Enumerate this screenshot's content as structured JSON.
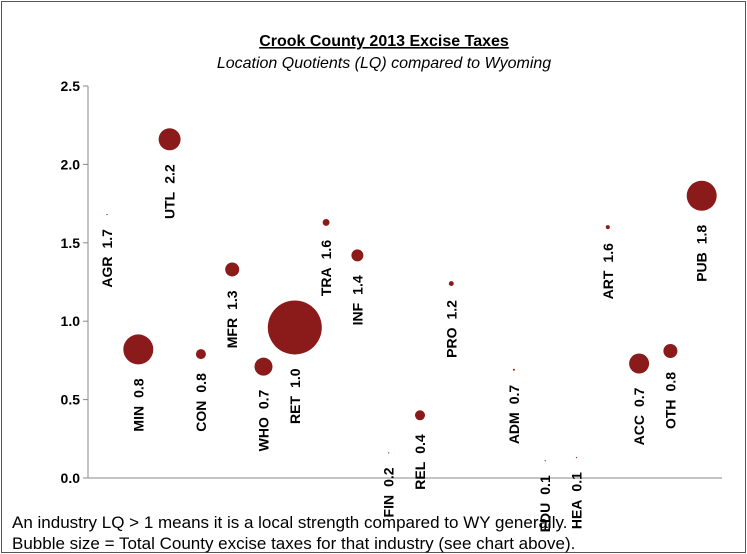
{
  "chart_data": {
    "type": "bubble",
    "title": "Crook County 2013 Excise Taxes",
    "subtitle": "Location Quotients (LQ) compared to Wyoming",
    "annotations": [
      "An industry LQ > 1 means it is a local strength compared to WY generally.",
      "Bubble size = Total County excise taxes for that industry (see chart above)."
    ],
    "categories": [
      "AGR",
      "MIN",
      "UTL",
      "CON",
      "MFR",
      "WHO",
      "RET",
      "TRA",
      "INF",
      "FIN",
      "REL",
      "PRO",
      null,
      "ADM",
      "EDU",
      "HEA",
      "ART",
      "ACC",
      "OTH",
      "PUB"
    ],
    "series": [
      {
        "name": "LQ",
        "color": "#8b1a1a",
        "values": [
          1.68,
          0.82,
          2.16,
          0.79,
          1.33,
          0.71,
          0.96,
          1.63,
          1.42,
          0.16,
          0.4,
          1.24,
          null,
          0.69,
          0.11,
          0.13,
          1.6,
          0.73,
          0.81,
          1.8
        ],
        "value_labels": [
          "1.7",
          "0.8",
          "2.2",
          "0.8",
          "1.3",
          "0.7",
          "1.0",
          "1.6",
          "1.4",
          "0.2",
          "0.4",
          "1.2",
          null,
          "0.7",
          "0.1",
          "0.1",
          "1.6",
          "0.7",
          "0.8",
          "1.8"
        ],
        "sizes": [
          0.25,
          225,
          121,
          25,
          49,
          81,
          729,
          12,
          36,
          0.25,
          25,
          6,
          null,
          1,
          0.25,
          0.25,
          4,
          100,
          49,
          225
        ]
      }
    ],
    "ylim": [
      0,
      2.5
    ],
    "yticks": [
      {
        "value": 0,
        "label": "0.0"
      },
      {
        "value": 0.5,
        "label": "0.5"
      },
      {
        "value": 1,
        "label": "1.0"
      },
      {
        "value": 1.5,
        "label": "1.5"
      },
      {
        "value": 2,
        "label": "2.0"
      },
      {
        "value": 2.5,
        "label": "2.5"
      }
    ],
    "grid": false
  }
}
